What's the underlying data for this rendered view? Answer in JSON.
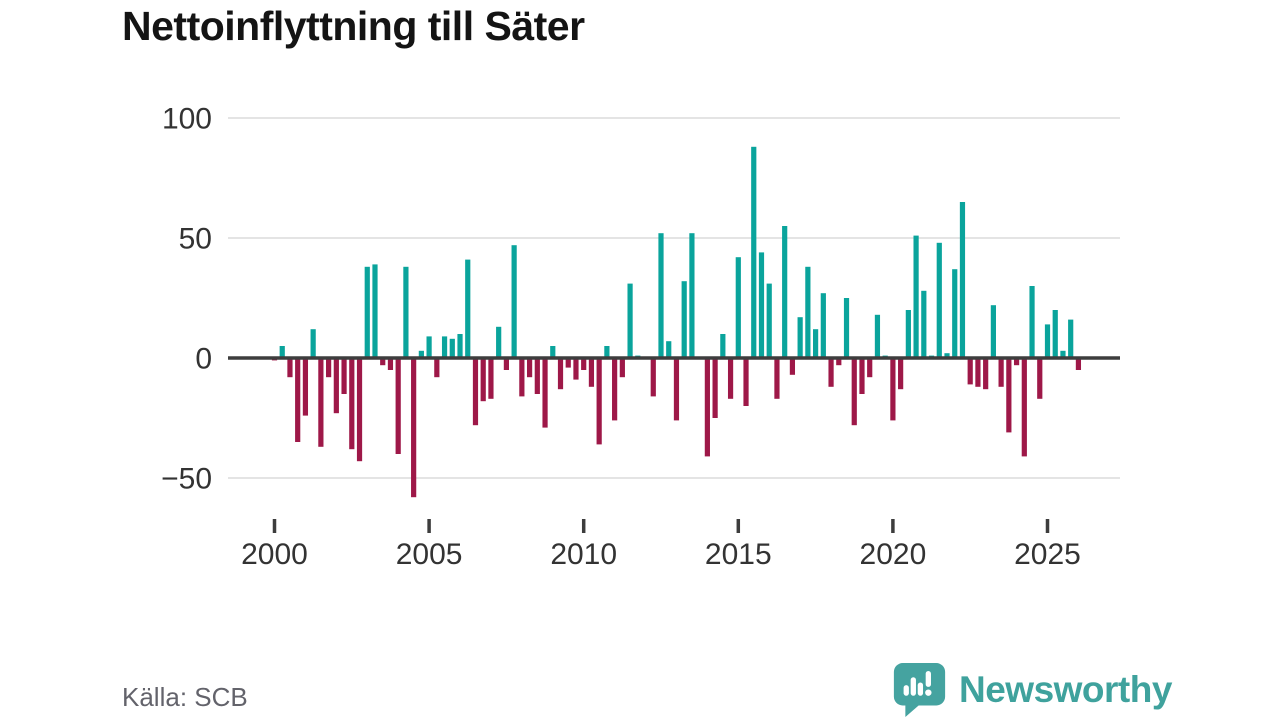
{
  "title": "Nettoinflyttning till Säter",
  "source": "Källa: SCB",
  "logo": {
    "text": "Newsworthy"
  },
  "colors": {
    "positive_bar": "#0aa49c",
    "negative_bar": "#9e1848",
    "zero_line": "#3d3d3d",
    "gridline": "#e4e4e4",
    "axis_text": "#333333",
    "title_text": "#141414",
    "source_text": "#63636b",
    "logo_teal": "#45a3a0"
  },
  "chart_data": {
    "type": "bar",
    "title": "Nettoinflyttning till Säter",
    "xlabel": "",
    "ylabel": "",
    "frequency": "quarterly",
    "x_start": "2000 Q1",
    "x_end": "2026 Q1",
    "values": [
      -1,
      5,
      -8,
      -35,
      -24,
      12,
      -37,
      -8,
      -23,
      -15,
      -38,
      -43,
      38,
      39,
      -3,
      -5,
      -40,
      38,
      -58,
      3,
      9,
      -8,
      9,
      8,
      10,
      41,
      -28,
      -18,
      -17,
      13,
      -5,
      47,
      -16,
      -8,
      -15,
      -29,
      5,
      -13,
      -4,
      -9,
      -5,
      -12,
      -36,
      5,
      -26,
      -8,
      31,
      1,
      0,
      -16,
      52,
      7,
      -26,
      32,
      52,
      0,
      -41,
      -25,
      10,
      -17,
      42,
      -20,
      88,
      44,
      31,
      -17,
      55,
      -7,
      17,
      38,
      12,
      27,
      -12,
      -3,
      25,
      -28,
      -15,
      -8,
      18,
      1,
      -26,
      -13,
      20,
      51,
      28,
      1,
      48,
      2,
      37,
      65,
      -11,
      -12,
      -13,
      22,
      -12,
      -31,
      -3,
      -41,
      30,
      -17,
      14,
      20,
      3,
      16,
      -5
    ],
    "yticks": [
      100,
      50,
      0,
      -50
    ],
    "ytick_labels": [
      "100",
      "50",
      "0",
      "−50"
    ],
    "xticks": [
      2000,
      2005,
      2010,
      2015,
      2020,
      2025
    ],
    "ylim": [
      -60,
      100
    ],
    "grid": "horizontal",
    "legend": "none"
  }
}
